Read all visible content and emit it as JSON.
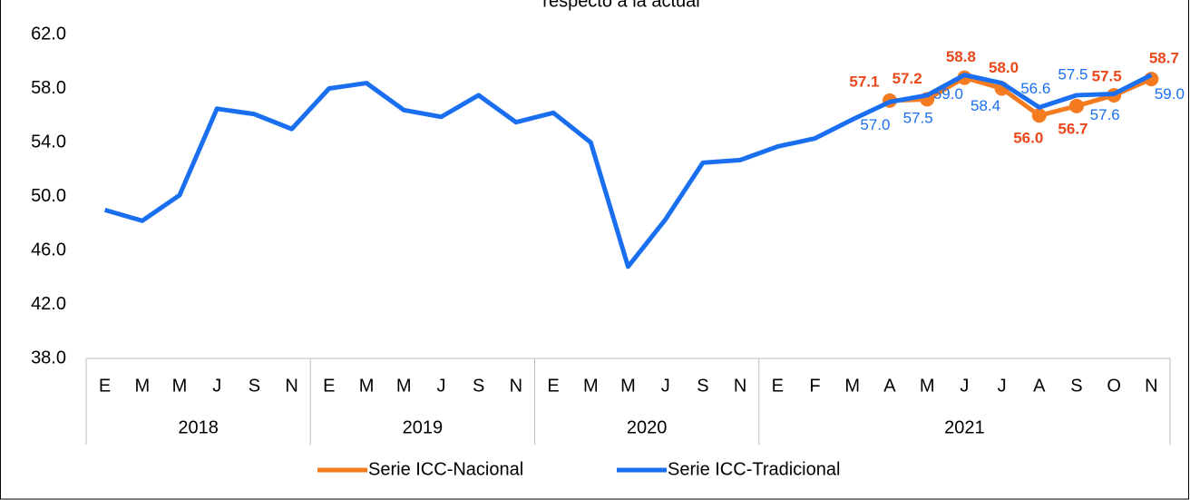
{
  "chart_data": {
    "type": "line",
    "title": "respecto a la actual",
    "groups": [
      {
        "name": "2018",
        "categories": [
          "E",
          "M",
          "M",
          "J",
          "S",
          "N"
        ]
      },
      {
        "name": "2019",
        "categories": [
          "E",
          "M",
          "M",
          "J",
          "S",
          "N"
        ]
      },
      {
        "name": "2020",
        "categories": [
          "E",
          "M",
          "M",
          "J",
          "S",
          "N"
        ]
      },
      {
        "name": "2021",
        "categories": [
          "E",
          "F",
          "M",
          "A",
          "M",
          "J",
          "J",
          "A",
          "S",
          "O",
          "N"
        ]
      }
    ],
    "series": [
      {
        "name": "Serie ICC-Nacional",
        "color": "#f47b20",
        "values": [
          null,
          null,
          null,
          null,
          null,
          null,
          null,
          null,
          null,
          null,
          null,
          null,
          null,
          null,
          null,
          null,
          null,
          null,
          null,
          null,
          null,
          57.1,
          57.2,
          58.8,
          58.0,
          56.0,
          56.7,
          57.5,
          58.7
        ],
        "value_labels": [
          null,
          null,
          null,
          null,
          null,
          null,
          null,
          null,
          null,
          null,
          null,
          null,
          null,
          null,
          null,
          null,
          null,
          null,
          null,
          null,
          null,
          "57.1",
          "57.2",
          "58.8",
          "58.0",
          "56.0",
          "56.7",
          "57.5",
          "58.7"
        ]
      },
      {
        "name": "Serie ICC-Tradicional",
        "color": "#1a6ff0",
        "values": [
          49.0,
          48.2,
          50.1,
          56.5,
          56.1,
          55.0,
          58.0,
          58.4,
          56.4,
          55.9,
          57.5,
          55.5,
          56.2,
          54.0,
          44.8,
          48.3,
          52.5,
          52.7,
          53.7,
          54.3,
          55.7,
          57.0,
          57.5,
          59.0,
          58.4,
          56.6,
          57.5,
          57.6,
          59.0
        ],
        "value_labels": [
          null,
          null,
          null,
          null,
          null,
          null,
          null,
          null,
          null,
          null,
          null,
          null,
          null,
          null,
          null,
          null,
          null,
          null,
          null,
          null,
          null,
          "57.0",
          "57.5",
          "59.0",
          "58.4",
          "56.6",
          "57.5",
          "57.6",
          "59.0"
        ]
      }
    ],
    "ylim": [
      38,
      62
    ],
    "yticks": [
      {
        "value": 38,
        "label": "38.0"
      },
      {
        "value": 42,
        "label": "42.0"
      },
      {
        "value": 46,
        "label": "46.0"
      },
      {
        "value": 50,
        "label": "50.0"
      },
      {
        "value": 54,
        "label": "54.0"
      },
      {
        "value": 58,
        "label": "58.0"
      },
      {
        "value": 62,
        "label": "62.0"
      }
    ],
    "grid": false,
    "legend": "bottom"
  }
}
